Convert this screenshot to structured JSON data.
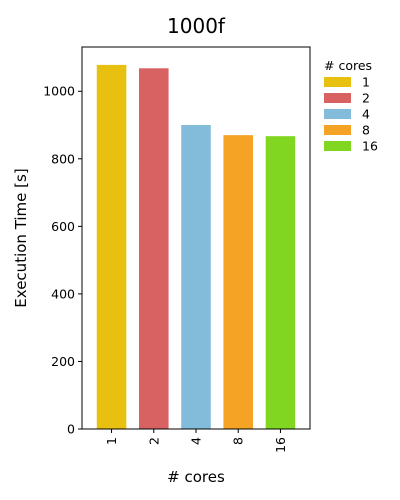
{
  "chart_data": {
    "type": "bar",
    "title": "1000f",
    "xlabel": "# cores",
    "ylabel": "Execution Time [s]",
    "categories": [
      "1",
      "2",
      "4",
      "8",
      "16"
    ],
    "values": [
      1078,
      1068,
      900,
      870,
      867
    ],
    "bar_colors": [
      "#e8c010",
      "#d86262",
      "#82bcda",
      "#f5a324",
      "#80d621"
    ],
    "ylim": [
      0,
      1131
    ],
    "yticks": [
      0,
      200,
      400,
      600,
      800,
      1000
    ],
    "grid": false,
    "legend": {
      "title": "# cores",
      "placement": "outside-right",
      "entries": [
        "1",
        "2",
        "4",
        "8",
        "16"
      ]
    }
  }
}
